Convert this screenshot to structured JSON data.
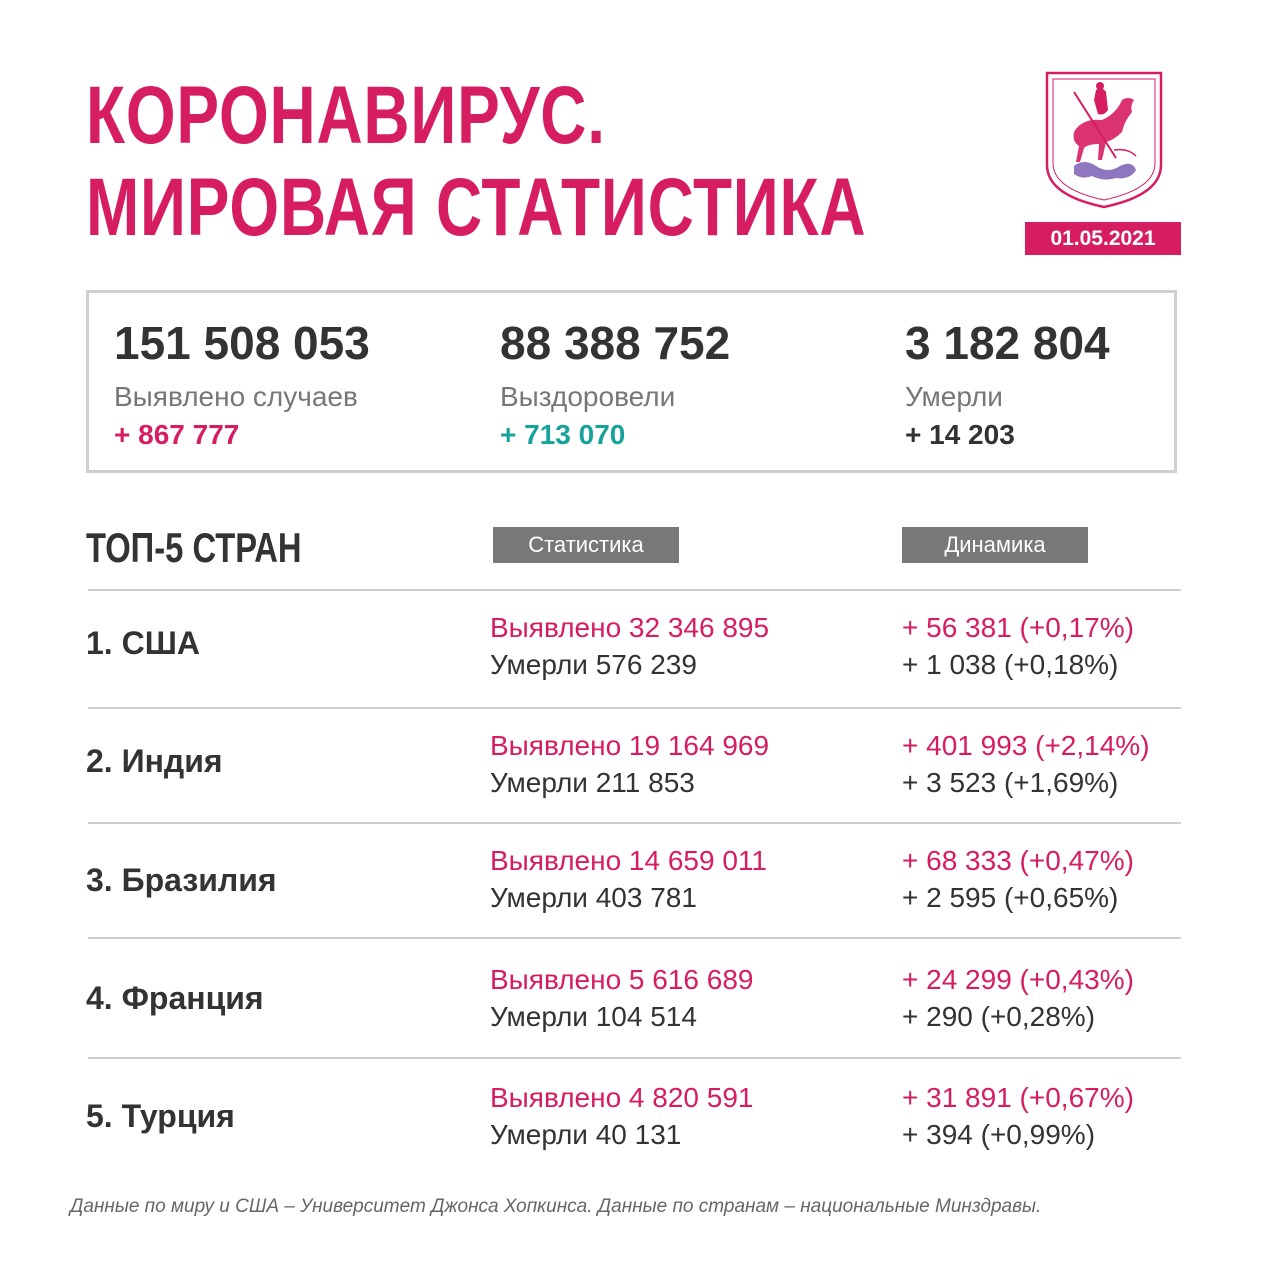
{
  "header": {
    "title_line1": "КОРОНАВИРУС.",
    "title_line2": "МИРОВАЯ СТАТИСТИКА",
    "date": "01.05.2021",
    "emblem_icon": "moscow-coat-of-arms-icon"
  },
  "summary": {
    "cases": {
      "value": "151 508 053",
      "label": "Выявлено случаев",
      "delta": "+ 867 777"
    },
    "recovered": {
      "value": "88 388 752",
      "label": "Выздоровели",
      "delta": "+ 713 070"
    },
    "deaths": {
      "value": "3 182 804",
      "label": "Умерли",
      "delta": "+ 14 203"
    }
  },
  "table": {
    "heading": "ТОП-5 СТРАН",
    "col_stats": "Статистика",
    "col_dynamics": "Динамика",
    "rows": [
      {
        "country": "1. США",
        "cases": "Выявлено 32 346 895",
        "deaths": "Умерли 576 239",
        "cases_delta": "+ 56 381 (+0,17%)",
        "deaths_delta": "+ 1 038 (+0,18%)"
      },
      {
        "country": "2. Индия",
        "cases": "Выявлено 19 164 969",
        "deaths": "Умерли 211 853",
        "cases_delta": "+ 401 993 (+2,14%)",
        "deaths_delta": "+ 3 523 (+1,69%)"
      },
      {
        "country": "3. Бразилия",
        "cases": "Выявлено 14 659 011",
        "deaths": "Умерли 403 781",
        "cases_delta": "+ 68 333 (+0,47%)",
        "deaths_delta": "+ 2 595 (+0,65%)"
      },
      {
        "country": "4. Франция",
        "cases": "Выявлено 5 616 689",
        "deaths": "Умерли 104 514",
        "cases_delta": "+ 24 299 (+0,43%)",
        "deaths_delta": "+ 290 (+0,28%)"
      },
      {
        "country": "5. Турция",
        "cases": "Выявлено 4 820 591",
        "deaths": "Умерли 40 131",
        "cases_delta": "+ 31 891 (+0,67%)",
        "deaths_delta": "+ 394 (+0,99%)"
      }
    ]
  },
  "footnote": "Данные по миру и США – Университет Джонса Хопкинса. Данные по странам – национальные Минздравы.",
  "colors": {
    "accent": "#d71d62",
    "recovered": "#17a39a",
    "text": "#333333",
    "tag_bg": "#787878"
  }
}
